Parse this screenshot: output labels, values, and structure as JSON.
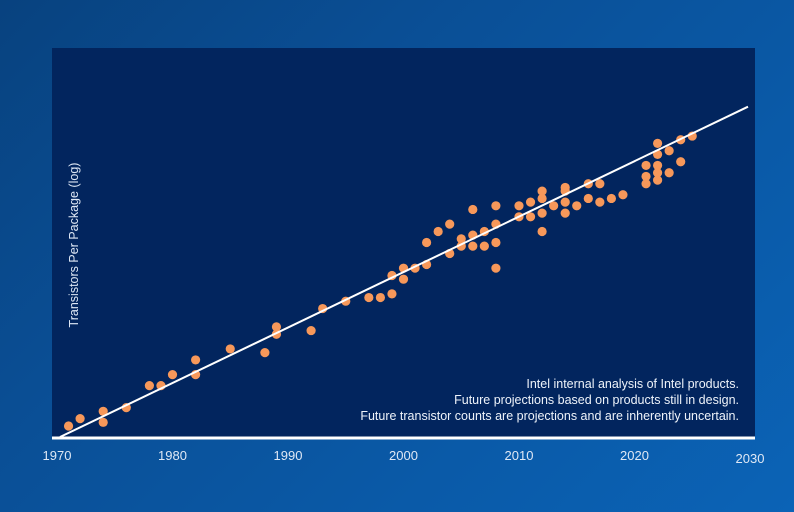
{
  "colors": {
    "plot_background": "#02255e",
    "page_background": "#0a4f96",
    "points": "#f7985a",
    "trend_line": "#ffffff",
    "axis_line": "#ffffff"
  },
  "notes": [
    "Intel internal analysis of Intel products.",
    "Future projections based on products still in design.",
    "Future transistor counts are projections and are inherently uncertain."
  ],
  "chart_data": {
    "type": "scatter",
    "title": "",
    "xlabel": "",
    "ylabel": "Transistors Per Package (log)",
    "y_scale": "log",
    "y_units": "log10 transistors (estimated; no tick labels shown)",
    "xlim": [
      1970,
      2030
    ],
    "ylim": [
      3,
      13.6
    ],
    "x_ticks": [
      "1970",
      "1980",
      "1990",
      "2000",
      "2010",
      "2020",
      "2030"
    ],
    "grid": false,
    "legend": "none",
    "trend_line": [
      [
        1970,
        3.0
      ],
      [
        2030,
        12.0
      ]
    ],
    "points": [
      [
        1971,
        3.3
      ],
      [
        1972,
        3.5
      ],
      [
        1974,
        3.7
      ],
      [
        1974,
        3.4
      ],
      [
        1976,
        3.8
      ],
      [
        1978,
        4.4
      ],
      [
        1979,
        4.4
      ],
      [
        1980,
        4.7
      ],
      [
        1982,
        5.1
      ],
      [
        1982,
        4.7
      ],
      [
        1985,
        5.4
      ],
      [
        1988,
        5.3
      ],
      [
        1989,
        6.0
      ],
      [
        1989,
        5.8
      ],
      [
        1992,
        5.9
      ],
      [
        1993,
        6.5
      ],
      [
        1995,
        6.7
      ],
      [
        1997,
        6.8
      ],
      [
        1998,
        6.8
      ],
      [
        1999,
        6.9
      ],
      [
        1999,
        7.4
      ],
      [
        2000,
        7.3
      ],
      [
        2000,
        7.6
      ],
      [
        2001,
        7.6
      ],
      [
        2002,
        7.7
      ],
      [
        2002,
        8.3
      ],
      [
        2003,
        8.6
      ],
      [
        2004,
        8.8
      ],
      [
        2004,
        8.0
      ],
      [
        2005,
        8.4
      ],
      [
        2005,
        8.2
      ],
      [
        2006,
        8.5
      ],
      [
        2006,
        9.2
      ],
      [
        2006,
        8.2
      ],
      [
        2007,
        8.6
      ],
      [
        2007,
        8.2
      ],
      [
        2008,
        9.3
      ],
      [
        2008,
        8.8
      ],
      [
        2008,
        8.3
      ],
      [
        2008,
        7.6
      ],
      [
        2010,
        9.3
      ],
      [
        2010,
        9.0
      ],
      [
        2011,
        9.4
      ],
      [
        2011,
        9.0
      ],
      [
        2012,
        9.7
      ],
      [
        2012,
        9.5
      ],
      [
        2012,
        9.1
      ],
      [
        2012,
        8.6
      ],
      [
        2013,
        9.3
      ],
      [
        2014,
        9.7
      ],
      [
        2014,
        9.8
      ],
      [
        2014,
        9.4
      ],
      [
        2014,
        9.1
      ],
      [
        2015,
        9.3
      ],
      [
        2016,
        9.9
      ],
      [
        2016,
        9.5
      ],
      [
        2017,
        9.9
      ],
      [
        2017,
        9.4
      ],
      [
        2018,
        9.5
      ],
      [
        2019,
        9.6
      ],
      [
        2021,
        10.4
      ],
      [
        2021,
        10.1
      ],
      [
        2021,
        9.9
      ],
      [
        2022,
        11.0
      ],
      [
        2022,
        10.7
      ],
      [
        2022,
        10.4
      ],
      [
        2022,
        10.2
      ],
      [
        2022,
        10.0
      ],
      [
        2023,
        10.8
      ],
      [
        2023,
        10.2
      ],
      [
        2024,
        11.1
      ],
      [
        2024,
        10.5
      ],
      [
        2025,
        11.2
      ]
    ]
  }
}
